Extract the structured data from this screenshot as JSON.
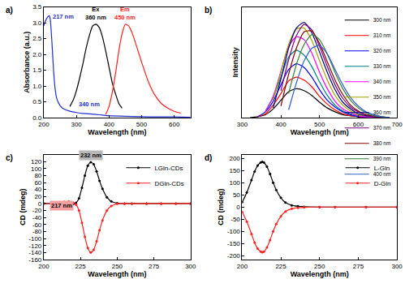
{
  "chart_data": [
    {
      "type": "line",
      "title": "a)",
      "x_label": "Wavelength (nm)",
      "y_label": "Absorbance (a.u.)",
      "xlim": [
        200,
        650
      ],
      "xticks": [
        200,
        300,
        400,
        500,
        600
      ],
      "ylim": [
        0,
        3.5
      ],
      "yticks": [
        {
          "value": 0,
          "label": "0.0"
        },
        0.5,
        {
          "value": 1,
          "label": "1.0"
        },
        1.5,
        {
          "value": 2,
          "label": "2.0"
        },
        2.5,
        {
          "value": 3,
          "label": "3.0"
        },
        3.5
      ],
      "series": [
        {
          "color": "#1f2fd0",
          "x": [
            200,
            205,
            210,
            214,
            217,
            220,
            225,
            230,
            235,
            240,
            250,
            260,
            280,
            300,
            320,
            340,
            360,
            380,
            400,
            450,
            500,
            550,
            600,
            650
          ],
          "values": [
            2.9,
            3.05,
            3.15,
            3.2,
            3.22,
            3.1,
            2.4,
            1.5,
            0.9,
            0.6,
            0.38,
            0.28,
            0.2,
            0.16,
            0.13,
            0.12,
            0.1,
            0.08,
            0.06,
            0.04,
            0.03,
            0.02,
            0.02,
            0.01
          ]
        },
        {
          "color": "#000000",
          "x": [
            280,
            290,
            300,
            310,
            320,
            330,
            340,
            350,
            360,
            370,
            380,
            390,
            400,
            410,
            420,
            430,
            440
          ],
          "values": [
            0.35,
            0.55,
            0.85,
            1.25,
            1.7,
            2.2,
            2.6,
            2.9,
            2.95,
            2.85,
            2.55,
            2.1,
            1.6,
            1.1,
            0.75,
            0.45,
            0.3
          ]
        },
        {
          "color": "#ff2020",
          "x": [
            390,
            400,
            410,
            420,
            430,
            440,
            450,
            460,
            470,
            480,
            500,
            520,
            540,
            560,
            580,
            600,
            620
          ],
          "values": [
            0.1,
            0.35,
            0.8,
            1.4,
            2.1,
            2.65,
            2.95,
            2.9,
            2.7,
            2.4,
            1.75,
            1.15,
            0.72,
            0.45,
            0.3,
            0.2,
            0.14
          ]
        }
      ],
      "annotations": [
        {
          "text": "217 nm",
          "x": 222,
          "y": 3.2,
          "color": "#1f2fd0"
        },
        {
          "text": "Ex\n360 nm",
          "x": 360,
          "y": 3.0,
          "color": "#000000"
        },
        {
          "text": "Em\n450 nm",
          "x": 450,
          "y": 3.0,
          "color": "#ff2020"
        },
        {
          "text": "340 nm",
          "x": 340,
          "y": 0.25,
          "color": "#1f2fd0"
        }
      ]
    },
    {
      "type": "line",
      "title": "b)",
      "x_label": "Wavelength (nm)",
      "y_label": "Intensity",
      "xlim": [
        300,
        700
      ],
      "xticks": [
        300,
        400,
        500,
        600,
        700
      ],
      "ylim": [
        0,
        1.15
      ],
      "yticks": [],
      "tick_labels": "x",
      "legend": "top right",
      "x": [
        320,
        340,
        360,
        380,
        400,
        420,
        440,
        460,
        480,
        500,
        520,
        540,
        560,
        580,
        600,
        620,
        640,
        660,
        680
      ],
      "series": [
        {
          "name": "300 nm",
          "color": "#000000",
          "values": [
            0,
            0.01,
            0.03,
            0.09,
            0.18,
            0.27,
            0.3,
            0.28,
            0.23,
            0.16,
            0.1,
            0.06,
            0.03,
            0.02,
            0.01,
            0,
            0,
            0,
            0
          ]
        },
        {
          "name": "310 nm",
          "color": "#ff0000",
          "values": [
            null,
            0.01,
            0.04,
            0.13,
            0.25,
            0.38,
            0.42,
            0.39,
            0.32,
            0.22,
            0.14,
            0.08,
            0.04,
            0.02,
            0.01,
            0,
            0,
            0,
            0
          ]
        },
        {
          "name": "320 nm",
          "color": "#0000ff",
          "values": [
            null,
            0.01,
            0.06,
            0.17,
            0.34,
            0.5,
            0.56,
            0.52,
            0.42,
            0.29,
            0.18,
            0.11,
            0.06,
            0.03,
            0.01,
            0.01,
            0,
            0,
            0
          ]
        },
        {
          "name": "330 nm",
          "color": "#008080",
          "values": [
            null,
            null,
            0.07,
            0.21,
            0.42,
            0.63,
            0.7,
            0.65,
            0.53,
            0.37,
            0.23,
            0.13,
            0.07,
            0.04,
            0.02,
            0.01,
            0,
            0,
            0
          ]
        },
        {
          "name": "340 nm",
          "color": "#ff00ff",
          "values": [
            null,
            null,
            0.06,
            0.22,
            0.48,
            0.74,
            0.84,
            0.81,
            0.67,
            0.47,
            0.3,
            0.17,
            0.09,
            0.05,
            0.02,
            0.01,
            0,
            0,
            0
          ]
        },
        {
          "name": "350 nm",
          "color": "#a0a000",
          "values": [
            null,
            null,
            null,
            0.18,
            0.47,
            0.76,
            0.92,
            0.93,
            0.8,
            0.59,
            0.39,
            0.23,
            0.13,
            0.07,
            0.03,
            0.02,
            0.01,
            0,
            0
          ]
        },
        {
          "name": "360 nm",
          "color": "#000080",
          "values": [
            null,
            null,
            null,
            0.1,
            0.4,
            0.72,
            0.93,
            0.99,
            0.88,
            0.68,
            0.47,
            0.29,
            0.16,
            0.09,
            0.04,
            0.02,
            0.01,
            0,
            0
          ]
        },
        {
          "name": "370 nm",
          "color": "#800080",
          "values": [
            null,
            null,
            null,
            null,
            0.28,
            0.6,
            0.85,
            0.97,
            0.91,
            0.74,
            0.53,
            0.34,
            0.2,
            0.11,
            0.06,
            0.03,
            0.01,
            0,
            0
          ]
        },
        {
          "name": "380 nm",
          "color": "#800000",
          "values": [
            null,
            null,
            null,
            null,
            0.12,
            0.45,
            0.72,
            0.89,
            0.9,
            0.77,
            0.58,
            0.39,
            0.24,
            0.13,
            0.07,
            0.03,
            0.02,
            0.01,
            0
          ]
        },
        {
          "name": "390 nm",
          "color": "#3a7d3a",
          "values": [
            null,
            null,
            null,
            null,
            null,
            0.25,
            0.55,
            0.76,
            0.86,
            0.81,
            0.66,
            0.47,
            0.3,
            0.18,
            0.1,
            0.05,
            0.02,
            0.01,
            0
          ]
        },
        {
          "name": "400 nm",
          "color": "#3060d0",
          "values": [
            null,
            null,
            null,
            null,
            null,
            0.08,
            0.36,
            0.59,
            0.72,
            0.75,
            0.66,
            0.5,
            0.34,
            0.21,
            0.12,
            0.06,
            0.03,
            0.01,
            0
          ]
        }
      ]
    },
    {
      "type": "line",
      "title": "c)",
      "x_label": "Wavelength (nm)",
      "y_label": "CD (mdeg)",
      "xlim": [
        200,
        300
      ],
      "xticks": [
        200,
        225,
        250,
        275,
        300
      ],
      "ylim": [
        -160,
        140
      ],
      "yticks": [
        -160,
        -140,
        -120,
        -100,
        -80,
        -60,
        -40,
        -20,
        0,
        20,
        40,
        60,
        80,
        100,
        120
      ],
      "legend": "top right",
      "marker": "circle",
      "x": [
        200,
        205,
        210,
        214,
        217,
        220,
        222,
        224,
        226,
        228,
        230,
        232,
        234,
        236,
        238,
        240,
        243,
        246,
        250,
        255,
        260,
        270,
        280,
        290,
        300
      ],
      "series": [
        {
          "name": "LGln-CDs",
          "color": "#000000",
          "values": [
            0,
            0,
            -1,
            -3,
            -4,
            -2,
            2,
            15,
            45,
            80,
            108,
            118,
            112,
            92,
            65,
            42,
            18,
            6,
            1,
            0,
            0,
            0,
            0,
            0,
            0
          ]
        },
        {
          "name": "DGln-CDs",
          "color": "#ff2020",
          "values": [
            0,
            0,
            2,
            5,
            6,
            3,
            -3,
            -20,
            -55,
            -95,
            -127,
            -140,
            -132,
            -108,
            -76,
            -48,
            -20,
            -7,
            -1,
            0,
            0,
            0,
            0,
            0,
            0
          ]
        }
      ],
      "annotations": [
        {
          "text": "232 nm",
          "x": 232,
          "y": 122,
          "color": "#b8b8b8"
        },
        {
          "text": "217 nm",
          "x": 212,
          "y": -20,
          "color": "#f4a0a0"
        }
      ]
    },
    {
      "type": "line",
      "title": "d)",
      "x_label": "Wavelength (nm)",
      "y_label": "CD (mdeg)",
      "xlim": [
        200,
        300
      ],
      "xticks": [
        200,
        225,
        250,
        275,
        300
      ],
      "ylim": [
        -215,
        215
      ],
      "yticks": [
        -200,
        -150,
        -100,
        -50,
        0,
        50,
        100,
        150,
        200
      ],
      "legend": "top right",
      "marker": "circle",
      "x": [
        200,
        203,
        206,
        208,
        210,
        212,
        213,
        214,
        216,
        218,
        220,
        222,
        225,
        228,
        232,
        236,
        240,
        250,
        260,
        280,
        300
      ],
      "series": [
        {
          "name": "L-Gln",
          "color": "#000000",
          "values": [
            20,
            60,
            110,
            145,
            170,
            183,
            185,
            183,
            165,
            135,
            100,
            70,
            38,
            18,
            7,
            3,
            1,
            0,
            0,
            0,
            0
          ]
        },
        {
          "name": "D-Gln",
          "color": "#ff2020",
          "values": [
            -20,
            -60,
            -110,
            -145,
            -170,
            -183,
            -185,
            -183,
            -165,
            -135,
            -100,
            -70,
            -38,
            -18,
            -7,
            -3,
            -1,
            0,
            0,
            0,
            0
          ]
        }
      ]
    }
  ]
}
